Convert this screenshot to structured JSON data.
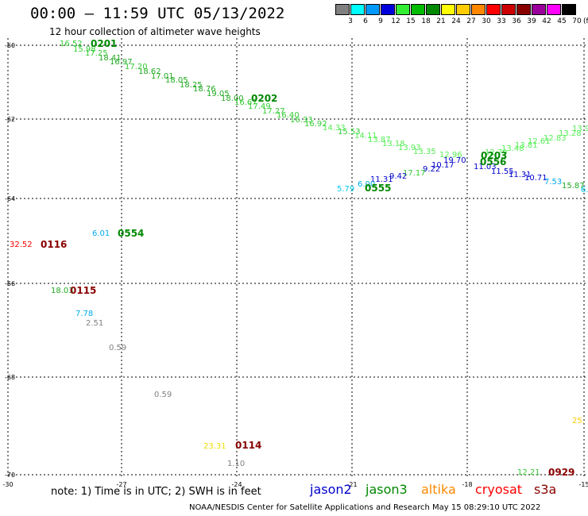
{
  "header": {
    "title": "00:00 – 11:59 UTC 05/13/2022",
    "subtitle": "12 hour collection of altimeter wave heights"
  },
  "legend": {
    "unit": "(ft)",
    "items": [
      {
        "label": "3",
        "color": "#808080"
      },
      {
        "label": "6",
        "color": "#00ffff"
      },
      {
        "label": "9",
        "color": "#0099ff"
      },
      {
        "label": "12",
        "color": "#0000dd"
      },
      {
        "label": "15",
        "color": "#33ee33"
      },
      {
        "label": "18",
        "color": "#00bb00"
      },
      {
        "label": "21",
        "color": "#008800"
      },
      {
        "label": "24",
        "color": "#ffff00"
      },
      {
        "label": "27",
        "color": "#ffcc00"
      },
      {
        "label": "30",
        "color": "#ff8800"
      },
      {
        "label": "33",
        "color": "#ff0000"
      },
      {
        "label": "36",
        "color": "#cc0000"
      },
      {
        "label": "39",
        "color": "#880000"
      },
      {
        "label": "42",
        "color": "#990099"
      },
      {
        "label": "45",
        "color": "#ff00ff"
      },
      {
        "label": "70",
        "color": "#000000"
      }
    ]
  },
  "axes": {
    "lat_labels": [
      "-60",
      "-62",
      "-64",
      "-66",
      "-68",
      "-70"
    ],
    "lon_labels": [
      "-30",
      "-27",
      "-24",
      "-21",
      "-18",
      "-15"
    ]
  },
  "wave_heights": [
    {
      "text": "16.52",
      "color": "#33cc33"
    },
    {
      "text": "15.98",
      "color": "#33cc33"
    },
    {
      "text": "17.25",
      "color": "#33cc33"
    },
    {
      "text": "18.41",
      "color": "#22aa22"
    },
    {
      "text": "16.97",
      "color": "#22aa22"
    },
    {
      "text": "17.20",
      "color": "#33cc33"
    },
    {
      "text": "18.62",
      "color": "#22aa22"
    },
    {
      "text": "17.01",
      "color": "#22aa22"
    },
    {
      "text": "18.05",
      "color": "#22aa22"
    },
    {
      "text": "18.25",
      "color": "#22aa22"
    },
    {
      "text": "18.76",
      "color": "#22aa22"
    },
    {
      "text": "19.05",
      "color": "#22aa22"
    },
    {
      "text": "18.00",
      "color": "#22aa22"
    },
    {
      "text": "16.67",
      "color": "#33cc33"
    },
    {
      "text": "17.49",
      "color": "#33cc33"
    },
    {
      "text": "17.27",
      "color": "#33cc33"
    },
    {
      "text": "16.40",
      "color": "#33cc33"
    },
    {
      "text": "16.33",
      "color": "#33cc33"
    },
    {
      "text": "16.92",
      "color": "#33cc33"
    },
    {
      "text": "14.33",
      "color": "#55ee55"
    },
    {
      "text": "15.53",
      "color": "#33cc33"
    },
    {
      "text": "14.11",
      "color": "#55ee55"
    },
    {
      "text": "13.87",
      "color": "#55ee55"
    },
    {
      "text": "13.18",
      "color": "#55ee55"
    },
    {
      "text": "13.93",
      "color": "#55ee55"
    },
    {
      "text": "13.35",
      "color": "#55ee55"
    },
    {
      "text": "12.96",
      "color": "#55ee55"
    },
    {
      "text": "12.79",
      "color": "#55ee55"
    },
    {
      "text": "13.48",
      "color": "#55ee55"
    },
    {
      "text": "13.81",
      "color": "#55ee55"
    },
    {
      "text": "12.61",
      "color": "#55ee55"
    },
    {
      "text": "12.83",
      "color": "#55ee55"
    },
    {
      "text": "13.28",
      "color": "#55ee55"
    },
    {
      "text": "13.9",
      "color": "#55ee55"
    },
    {
      "text": "19.70",
      "color": "#0000cc"
    },
    {
      "text": "10.17",
      "color": "#0000cc"
    },
    {
      "text": "9.22",
      "color": "#0000cc"
    },
    {
      "text": "17.17",
      "color": "#33cc33"
    },
    {
      "text": "9.42",
      "color": "#0000cc"
    },
    {
      "text": "11.31",
      "color": "#0000cc"
    },
    {
      "text": "6.00",
      "color": "#00aaee"
    },
    {
      "text": "5.79",
      "color": "#00ccee"
    },
    {
      "text": "11.03",
      "color": "#0000cc"
    },
    {
      "text": "11.55",
      "color": "#0000cc"
    },
    {
      "text": "11.31",
      "color": "#0000cc"
    },
    {
      "text": "10.71",
      "color": "#0000cc"
    },
    {
      "text": "7.53",
      "color": "#00aaee"
    },
    {
      "text": "15.87",
      "color": "#22aa22"
    },
    {
      "text": "6.",
      "color": "#00ccee"
    },
    {
      "text": "6.01",
      "color": "#00aaee"
    },
    {
      "text": "32.52",
      "color": "#ff0000"
    },
    {
      "text": "18.03",
      "color": "#22aa22"
    },
    {
      "text": "7.78",
      "color": "#00aaee"
    },
    {
      "text": "2.51",
      "color": "#808080"
    },
    {
      "text": "0.59",
      "color": "#808080"
    },
    {
      "text": "0.59",
      "color": "#808080"
    },
    {
      "text": "23.31",
      "color": "#eedd00"
    },
    {
      "text": "1.10",
      "color": "#808080"
    },
    {
      "text": "25.",
      "color": "#ffcc00"
    },
    {
      "text": "12.21",
      "color": "#33cc33"
    }
  ],
  "pass_times": [
    {
      "text": "0201",
      "color": "#008800"
    },
    {
      "text": "0202",
      "color": "#008800"
    },
    {
      "text": "0203",
      "color": "#008800"
    },
    {
      "text": "0556",
      "color": "#008800"
    },
    {
      "text": "0555",
      "color": "#008800"
    },
    {
      "text": "0554",
      "color": "#008800"
    },
    {
      "text": "0116",
      "color": "#880000"
    },
    {
      "text": "0115",
      "color": "#880000"
    },
    {
      "text": "0114",
      "color": "#880000"
    },
    {
      "text": "0929",
      "color": "#880000"
    }
  ],
  "footer": {
    "note": "note:  1) Time is in UTC;  2) SWH is in feet",
    "satellites": [
      {
        "name": "jason2",
        "color": "#0000cc"
      },
      {
        "name": "jason3",
        "color": "#008800"
      },
      {
        "name": "altika",
        "color": "#ff8800"
      },
      {
        "name": "cryosat",
        "color": "#ff0000"
      },
      {
        "name": "s3a",
        "color": "#880000"
      }
    ],
    "credit": "NOAA/NESDIS Center for Satellite Applications and Research      May 15 08:29:10 UTC 2022"
  }
}
